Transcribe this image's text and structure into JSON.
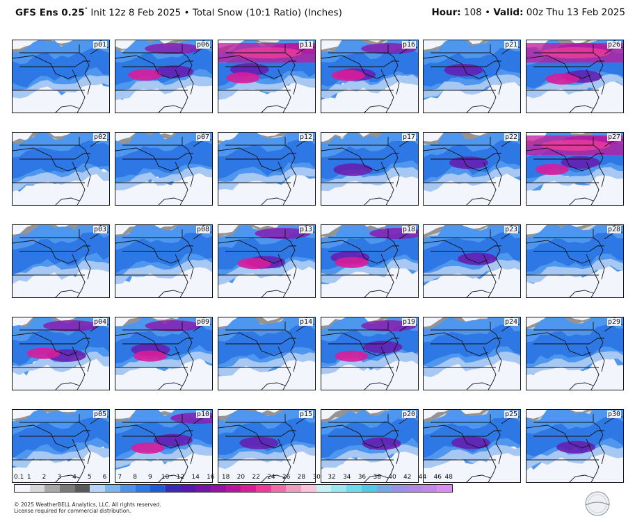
{
  "header": {
    "model": "GFS Ens 0.25",
    "degree": "°",
    "init": " Init 12z 8 Feb 2025",
    "bullet1": " • ",
    "product": "Total Snow (10:1 Ratio) (Inches)",
    "hour_label": "Hour:",
    "hour_value": " 108 ",
    "bullet2": "• ",
    "valid_label": "Valid:",
    "valid_value": " 00z Thu 13 Feb 2025"
  },
  "panels": [
    [
      "p01",
      "p06",
      "p11",
      "p16",
      "p21",
      "p26"
    ],
    [
      "p02",
      "p07",
      "p12",
      "p17",
      "p22",
      "p27"
    ],
    [
      "p03",
      "p08",
      "p13",
      "p18",
      "p23",
      "p28"
    ],
    [
      "p04",
      "p09",
      "p14",
      "p19",
      "p24",
      "p29"
    ],
    [
      "p05",
      "p10",
      "p15",
      "p20",
      "p25",
      "p30"
    ]
  ],
  "panel_intensity": [
    [
      1,
      3,
      4,
      3,
      2,
      4
    ],
    [
      1,
      1,
      1,
      2,
      2,
      4
    ],
    [
      1,
      1,
      3,
      3,
      2,
      1
    ],
    [
      3,
      3,
      1,
      3,
      1,
      1
    ],
    [
      1,
      3,
      2,
      2,
      2,
      2
    ]
  ],
  "colorbar": {
    "ticks": [
      "0.1",
      "1",
      "2",
      "3",
      "4",
      "5",
      "6",
      "7",
      "8",
      "9",
      "10",
      "12",
      "14",
      "16",
      "18",
      "20",
      "22",
      "24",
      "26",
      "28",
      "30",
      "32",
      "34",
      "36",
      "38",
      "40",
      "42",
      "44",
      "46",
      "48"
    ],
    "colors": [
      "#f4f6fc",
      "#d8d8d8",
      "#a8a8a8",
      "#7a7a7a",
      "#5a5a5a",
      "#b8d4f8",
      "#7ab4f4",
      "#4a94ee",
      "#2d7ae6",
      "#1a5fd8",
      "#3a2ab8",
      "#5218b0",
      "#7414a8",
      "#9612a6",
      "#b814a4",
      "#d81c9a",
      "#ec3c98",
      "#f06ca8",
      "#f49cc0",
      "#f8c4d8",
      "#c8f0f4",
      "#98e8f0",
      "#6cdcec",
      "#50c8e8",
      "#74a8ec",
      "#9890ec",
      "#b088ec",
      "#c088ec",
      "#d890f0"
    ]
  },
  "copyright": "© 2025 WeatherBELL Analytics, LLC. All rights reserved.",
  "license": "License required for commercial distribution.",
  "logo_text": "WeatherBELL"
}
